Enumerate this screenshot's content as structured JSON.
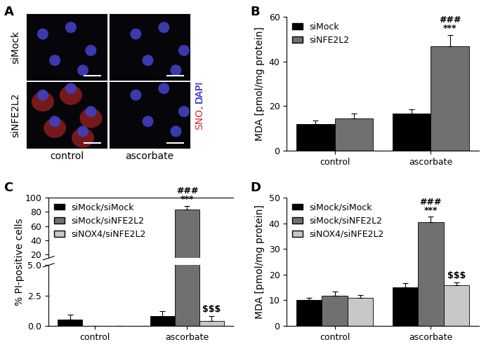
{
  "panel_labels": [
    "A",
    "B",
    "C",
    "D"
  ],
  "image_panel": {
    "row_labels": [
      "siMock",
      "siNFE2L2"
    ],
    "column_labels": [
      "control",
      "ascorbate"
    ],
    "stains": [
      {
        "text": "SNO",
        "color": "#d42a2a"
      },
      {
        "text": "DAPI",
        "color": "#2a2ad4"
      }
    ],
    "separator": ", "
  },
  "chart_data": [
    {
      "type": "bar",
      "y_label": "MDA [pmol/mg protein]",
      "categories": [
        "control",
        "ascorbate"
      ],
      "series": [
        {
          "name": "siMock",
          "color": "#000000",
          "values": [
            12,
            16.5
          ],
          "errors": [
            1.5,
            2
          ]
        },
        {
          "name": "siNFE2L2",
          "color": "#707070",
          "values": [
            14.5,
            47
          ],
          "errors": [
            2,
            5
          ]
        }
      ],
      "ylim": [
        0,
        60
      ],
      "yticks": [
        0,
        20,
        40,
        60
      ],
      "legend": "upper left",
      "grid": false,
      "annotations": [
        {
          "category": "ascorbate",
          "series": "siNFE2L2",
          "texts": [
            "###",
            "***"
          ]
        }
      ]
    },
    {
      "type": "bar",
      "y_label": "% PI-positive cells",
      "categories": [
        "control",
        "ascorbate"
      ],
      "series": [
        {
          "name": "siMock/siMock",
          "color": "#000000",
          "values": [
            0.5,
            0.8
          ],
          "errors": [
            0.4,
            0.4
          ]
        },
        {
          "name": "siMock/siNFE2L2",
          "color": "#707070",
          "values": [
            0,
            83
          ],
          "errors": [
            0,
            5
          ]
        },
        {
          "name": "siNOX4/siNFE2L2",
          "color": "#c8c8c8",
          "values": [
            0,
            0.4
          ],
          "errors": [
            0,
            0.4
          ]
        }
      ],
      "segments": [
        {
          "ylim": [
            0,
            5
          ],
          "yticks": [
            {
              "value": 0,
              "label": "0.0"
            },
            2.5,
            {
              "value": 5,
              "label": "5.0"
            }
          ]
        },
        {
          "ylim": [
            15,
            100
          ],
          "yticks": [
            20,
            40,
            60,
            80,
            100
          ]
        }
      ],
      "legend": "upper left",
      "grid": false,
      "annotations": [
        {
          "category": "ascorbate",
          "series": "siMock/siNFE2L2",
          "texts": [
            "###",
            "***"
          ]
        },
        {
          "category": "ascorbate",
          "series": "siNOX4/siNFE2L2",
          "texts": [
            "$$$"
          ]
        }
      ]
    },
    {
      "type": "bar",
      "y_label": "MDA [pmol/mg protein]",
      "categories": [
        "control",
        "ascorbate"
      ],
      "series": [
        {
          "name": "siMock/siMock",
          "color": "#000000",
          "values": [
            10,
            15
          ],
          "errors": [
            1,
            1.5
          ]
        },
        {
          "name": "siMock/siNFE2L2",
          "color": "#707070",
          "values": [
            11.8,
            40.5
          ],
          "errors": [
            1.5,
            2
          ]
        },
        {
          "name": "siNOX4/siNFE2L2",
          "color": "#c8c8c8",
          "values": [
            11,
            15.8
          ],
          "errors": [
            1,
            1.2
          ]
        }
      ],
      "ylim": [
        0,
        50
      ],
      "yticks": [
        0,
        10,
        20,
        30,
        40,
        50
      ],
      "legend": "upper left",
      "grid": false,
      "annotations": [
        {
          "category": "ascorbate",
          "series": "siMock/siNFE2L2",
          "texts": [
            "###",
            "***"
          ]
        },
        {
          "category": "ascorbate",
          "series": "siNOX4/siNFE2L2",
          "texts": [
            "$$$"
          ]
        }
      ]
    }
  ]
}
